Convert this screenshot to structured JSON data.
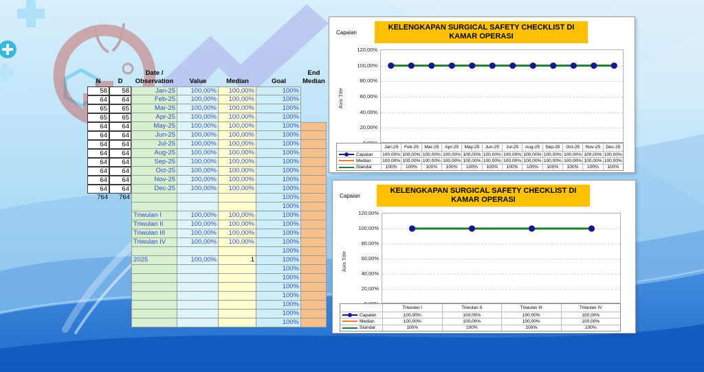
{
  "colors": {
    "chart_title_bg": "#FFC000",
    "capaian": "#16168F",
    "median": "#ED7D31",
    "standar": "#1E7A2E",
    "cell_green": "#D9F0D0",
    "cell_cyan": "#DEF6FA",
    "cell_yellow": "#FFFFCF",
    "cell_blue": "#CDEEFB",
    "cell_orange": "#F8C08C",
    "value_text_blue": "#2B4FD0"
  },
  "sheet": {
    "headers": {
      "n": "N",
      "d": "D",
      "date1": "Date /",
      "date2": "Observation",
      "value": "Value",
      "median": "Median",
      "goal": "Goal",
      "end1": "End",
      "end2": "Median"
    },
    "rows": [
      {
        "n": "58",
        "d": "58",
        "label": "Jan-25",
        "value": "100,00%",
        "median": "100,00%",
        "goal": "100%",
        "nd": true
      },
      {
        "n": "64",
        "d": "64",
        "label": "Feb-25",
        "value": "100,00%",
        "median": "100,00%",
        "goal": "100%",
        "nd": true
      },
      {
        "n": "65",
        "d": "65",
        "label": "Mar-25",
        "value": "100,00%",
        "median": "100,00%",
        "goal": "100%",
        "nd": true
      },
      {
        "n": "65",
        "d": "65",
        "label": "Apr-25",
        "value": "100,00%",
        "median": "100,00%",
        "goal": "100%",
        "nd": true
      },
      {
        "n": "64",
        "d": "64",
        "label": "May-25",
        "value": "100,00%",
        "median": "100,00%",
        "goal": "100%",
        "nd": true,
        "end": true
      },
      {
        "n": "64",
        "d": "64",
        "label": "Jun-25",
        "value": "100,00%",
        "median": "100,00%",
        "goal": "100%",
        "nd": true,
        "end": true
      },
      {
        "n": "64",
        "d": "64",
        "label": "Jul-25",
        "value": "100,00%",
        "median": "100,00%",
        "goal": "100%",
        "nd": true,
        "end": true
      },
      {
        "n": "64",
        "d": "64",
        "label": "Aug-25",
        "value": "100,00%",
        "median": "100,00%",
        "goal": "100%",
        "nd": true,
        "end": true
      },
      {
        "n": "64",
        "d": "64",
        "label": "Sep-25",
        "value": "100,00%",
        "median": "100,00%",
        "goal": "100%",
        "nd": true,
        "end": true
      },
      {
        "n": "64",
        "d": "64",
        "label": "Oct-25",
        "value": "100,00%",
        "median": "100,00%",
        "goal": "100%",
        "nd": true,
        "end": true
      },
      {
        "n": "64",
        "d": "64",
        "label": "Nov-25",
        "value": "100,00%",
        "median": "100,00%",
        "goal": "100%",
        "nd": true,
        "end": true
      },
      {
        "n": "64",
        "d": "64",
        "label": "Dec-25",
        "value": "100,00%",
        "median": "100,00%",
        "goal": "100%",
        "nd": true,
        "end": true
      },
      {
        "n": "764",
        "d": "764",
        "goal": "100%",
        "end": true
      },
      {
        "goal": "100%",
        "end": true
      },
      {
        "label": "Triwulan I",
        "value": "100,00%",
        "median": "100,00%",
        "goal": "100%",
        "left": true,
        "end": true
      },
      {
        "label": "Triwulan II",
        "value": "100,00%",
        "median": "100,00%",
        "goal": "100%",
        "left": true,
        "end": true
      },
      {
        "label": "Triwulan III",
        "value": "100,00%",
        "median": "100,00%",
        "goal": "100%",
        "left": true,
        "end": true
      },
      {
        "label": "Triwulan IV",
        "value": "100,00%",
        "median": "100,00%",
        "goal": "100%",
        "left": true,
        "end": true
      },
      {
        "goal": "100%",
        "end": true
      },
      {
        "label": "2025",
        "value": "100,00%",
        "median": "1",
        "goal": "100%",
        "left": true,
        "mblack": true,
        "end": true
      },
      {
        "goal": "100%",
        "end": true
      },
      {
        "goal": "100%",
        "end": true
      },
      {
        "goal": "100%",
        "end": true
      },
      {
        "goal": "100%",
        "end": true
      },
      {
        "goal": "100%",
        "end": true
      },
      {
        "goal": "100%",
        "end": true
      },
      {
        "goal": "100%",
        "end": true
      }
    ]
  },
  "chart_data": [
    {
      "type": "line",
      "title": "KELENGKAPAN SURGICAL SAFETY CHECKLIST DI KAMAR OPERASI",
      "corner_label": "Capaian",
      "y_axis_title": "Axis Title",
      "y_ticks": [
        "120,00%",
        "100,00%",
        "80,00%",
        "60,00%",
        "40,00%",
        "20,00%",
        "0,00%"
      ],
      "ylim": [
        0,
        120
      ],
      "grid": true,
      "legend_position": "data-table-left",
      "categories": [
        "Jan-25",
        "Feb-25",
        "Mar-25",
        "Apr-25",
        "May-25",
        "Jun-25",
        "Jul-25",
        "Aug-25",
        "Sep-25",
        "Oct-25",
        "Nov-25",
        "Dec-25"
      ],
      "series": [
        {
          "name": "Capaian",
          "color": "#16168F",
          "marker": "circle",
          "values": [
            100,
            100,
            100,
            100,
            100,
            100,
            100,
            100,
            100,
            100,
            100,
            100
          ],
          "table": [
            "100,00%",
            "100,00%",
            "100,00%",
            "100,00%",
            "100,00%",
            "100,00%",
            "100,00%",
            "100,00%",
            "100,00%",
            "100,00%",
            "100,00%",
            "100,00%"
          ]
        },
        {
          "name": "Median",
          "color": "#ED7D31",
          "marker": "none",
          "values": [
            100,
            100,
            100,
            100,
            100,
            100,
            100,
            100,
            100,
            100,
            100,
            100
          ],
          "table": [
            "100,00%",
            "100,00%",
            "100,00%",
            "100,00%",
            "100,00%",
            "100,00%",
            "100,00%",
            "100,00%",
            "100,00%",
            "100,00%",
            "100,00%",
            "100,00%"
          ]
        },
        {
          "name": "Standar",
          "color": "#1E7A2E",
          "marker": "none",
          "values": [
            100,
            100,
            100,
            100,
            100,
            100,
            100,
            100,
            100,
            100,
            100,
            100
          ],
          "table": [
            "100%",
            "100%",
            "100%",
            "100%",
            "100%",
            "100%",
            "100%",
            "100%",
            "100%",
            "100%",
            "100%",
            "100%"
          ]
        }
      ]
    },
    {
      "type": "line",
      "title": "KELENGKAPAN SURGICAL SAFETY CHECKLIST DI KAMAR OPERASI",
      "corner_label": "Capaian",
      "y_axis_title": "Axis Title",
      "y_ticks": [
        "120,00%",
        "100,00%",
        "80,00%",
        "60,00%",
        "40,00%",
        "20,00%",
        "0,00%"
      ],
      "ylim": [
        0,
        120
      ],
      "grid": true,
      "legend_position": "data-table-left",
      "categories": [
        "Triwulan I",
        "Triwulan II",
        "Triwulan III",
        "Triwulan IV"
      ],
      "series": [
        {
          "name": "Capaian",
          "color": "#16168F",
          "marker": "circle",
          "values": [
            100,
            100,
            100,
            100
          ],
          "table": [
            "100,00%",
            "100,00%",
            "100,00%",
            "100,00%"
          ]
        },
        {
          "name": "Median",
          "color": "#ED7D31",
          "marker": "none",
          "values": [
            100,
            100,
            100,
            100
          ],
          "table": [
            "100,00%",
            "100,00%",
            "100,00%",
            "100,00%"
          ]
        },
        {
          "name": "Standar",
          "color": "#1E7A2E",
          "marker": "none",
          "values": [
            100,
            100,
            100,
            100
          ],
          "table": [
            "100%",
            "100%",
            "100%",
            "100%"
          ]
        }
      ]
    }
  ]
}
